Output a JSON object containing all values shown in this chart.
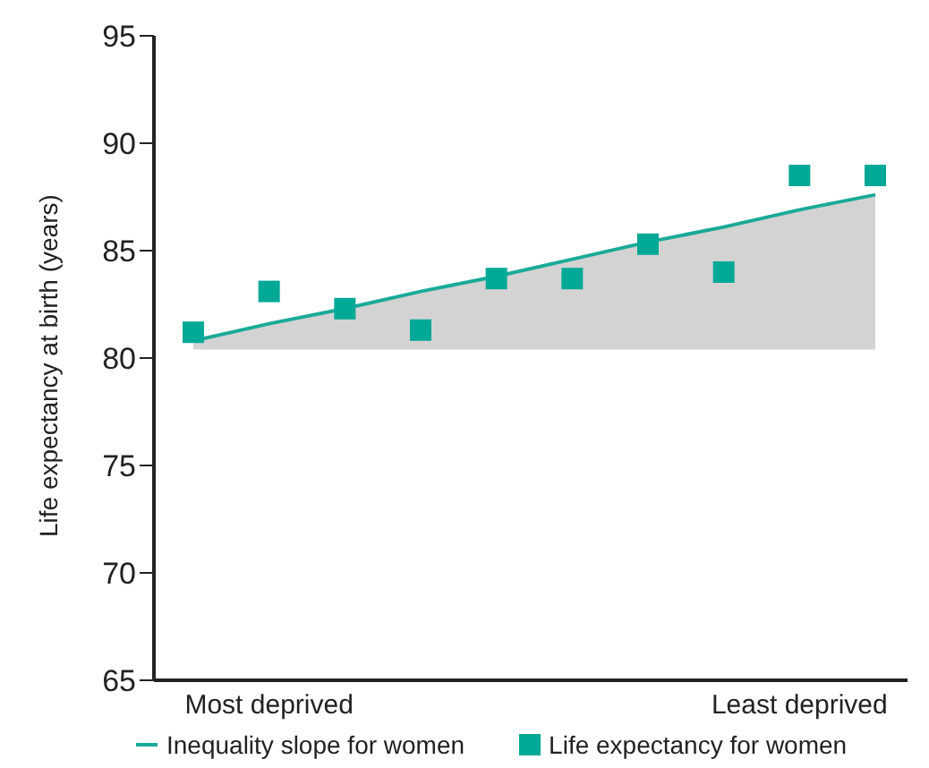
{
  "chart_data": {
    "type": "scatter",
    "ylabel": "Life expectancy at birth (years)",
    "categories": [
      null,
      "Most deprived",
      null,
      null,
      null,
      null,
      null,
      null,
      "Least deprived",
      null
    ],
    "ylim": [
      65,
      95
    ],
    "yticks": [
      65,
      70,
      75,
      80,
      85,
      90,
      95
    ],
    "legend": "bottom",
    "grid": false,
    "series": [
      {
        "name": "Inequality slope for women",
        "type": "line",
        "marker": "none",
        "color": "#1aaa98",
        "values": [
          80.8,
          81.6,
          82.3,
          83.1,
          83.8,
          84.6,
          85.4,
          86.1,
          86.9,
          87.6
        ],
        "lower": [
          80.4,
          80.4,
          80.4,
          80.4,
          80.4,
          80.4,
          80.4,
          80.4,
          80.4,
          80.4
        ],
        "upper": [
          80.8,
          81.6,
          82.3,
          83.1,
          83.8,
          84.6,
          85.4,
          86.1,
          86.9,
          87.6
        ]
      },
      {
        "name": "Life expectancy for women",
        "marker": "square",
        "color": "#00a996",
        "values": [
          81.2,
          83.1,
          82.3,
          81.3,
          83.7,
          83.7,
          85.3,
          84.0,
          88.5,
          88.5
        ]
      }
    ]
  }
}
